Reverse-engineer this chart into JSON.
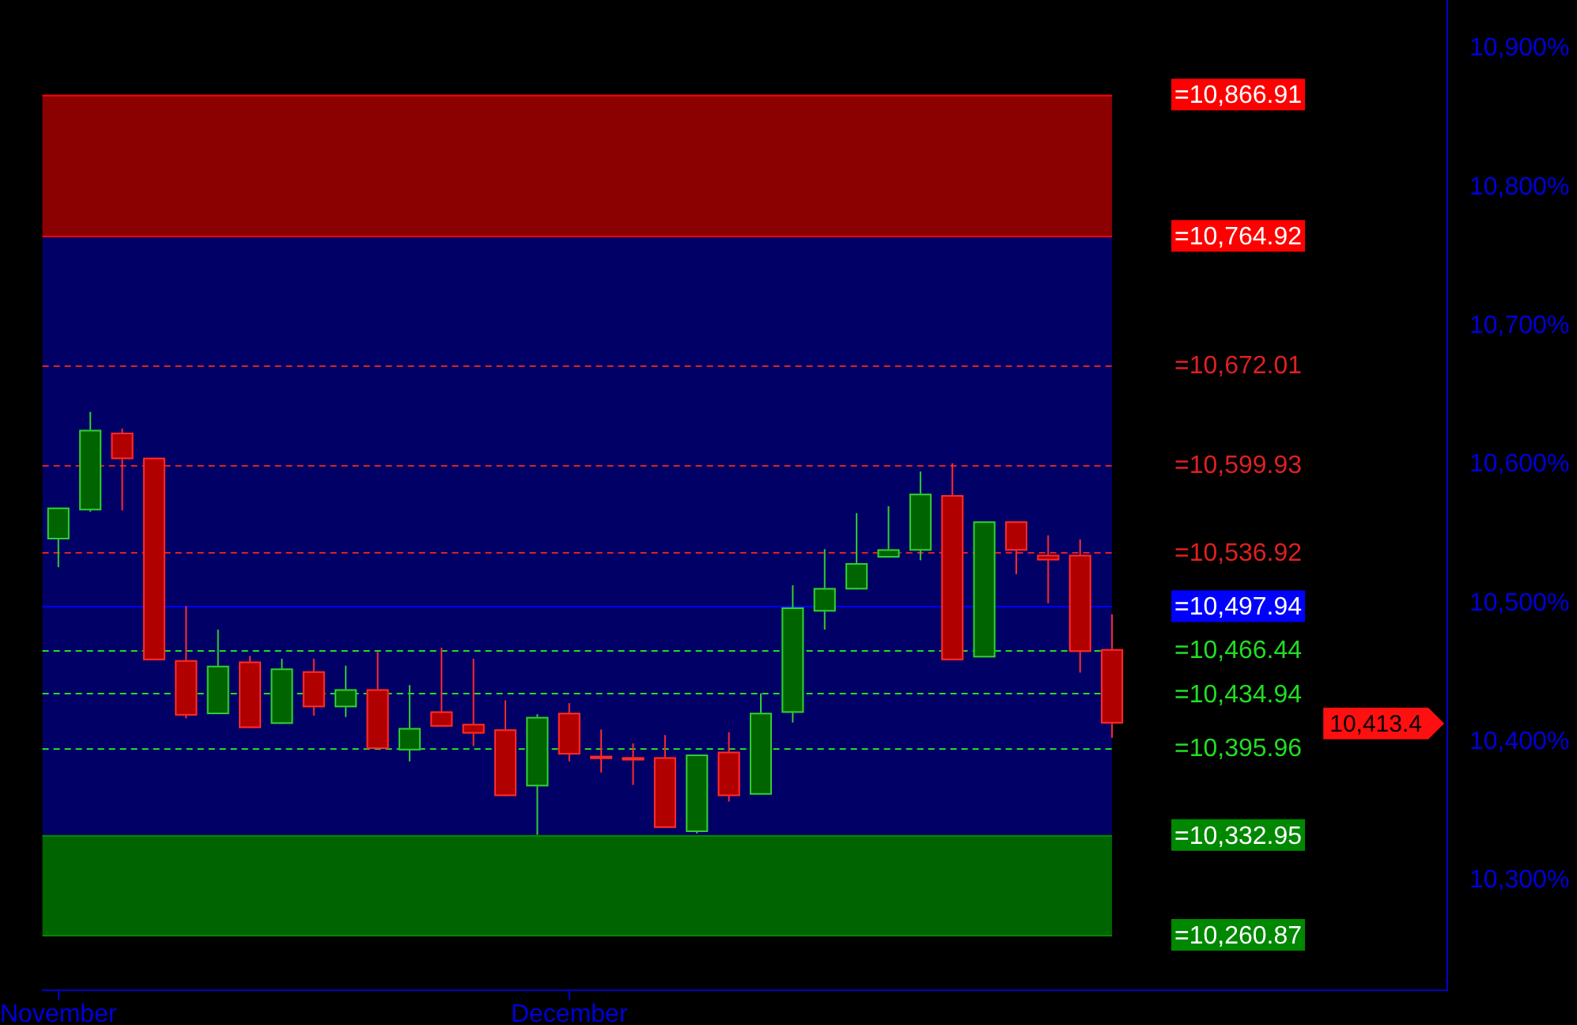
{
  "chart_data": {
    "type": "candlestick",
    "categories": [
      "November",
      null,
      null,
      null,
      null,
      null,
      null,
      null,
      null,
      null,
      null,
      null,
      null,
      null,
      null,
      null,
      "December",
      null,
      null,
      null,
      null,
      null,
      null,
      null,
      null,
      null,
      null,
      null,
      null,
      null,
      null,
      null,
      null,
      null,
      null,
      null,
      null,
      null,
      null,
      null,
      null,
      null,
      null,
      null
    ],
    "ohlc": [
      [
        10546,
        10569,
        10526,
        10569
      ],
      [
        10567,
        10638,
        10566,
        10625
      ],
      [
        10623,
        10626,
        10567,
        10604
      ],
      [
        10605,
        10605,
        10459,
        10459
      ],
      [
        10459,
        10498,
        10417,
        10419
      ],
      [
        10420,
        10481,
        10420,
        10455
      ],
      [
        10458,
        10462,
        10410,
        10410
      ],
      [
        10413,
        10460,
        10413,
        10453
      ],
      [
        10451,
        10460,
        10419,
        10425
      ],
      [
        10425,
        10455,
        10418,
        10438
      ],
      [
        10438,
        10465,
        10395,
        10395
      ],
      [
        10394,
        10441,
        10386,
        10410
      ],
      [
        10422,
        10468,
        10411,
        10411
      ],
      [
        10413,
        10460,
        10397,
        10406
      ],
      [
        10409,
        10430,
        10361,
        10361
      ],
      [
        10368,
        10420,
        10333,
        10418
      ],
      [
        10421,
        10428,
        10386,
        10391
      ],
      [
        10390,
        10409,
        10378,
        10389
      ],
      [
        10389,
        10399,
        10369,
        10388
      ],
      [
        10389,
        10405,
        10338,
        10338
      ],
      [
        10335,
        10391,
        10334,
        10391
      ],
      [
        10393,
        10407,
        10357,
        10361
      ],
      [
        10362,
        10435,
        10362,
        10421
      ],
      [
        10421,
        10513,
        10414,
        10497
      ],
      [
        10494,
        10539,
        10481,
        10511
      ],
      [
        10510,
        10565,
        10510,
        10529
      ],
      [
        10533,
        10570,
        10533,
        10539
      ],
      [
        10538,
        10595,
        10531,
        10579
      ],
      [
        10578,
        10601,
        10459,
        10459
      ],
      [
        10461,
        10559,
        10461,
        10559
      ],
      [
        10559,
        10559,
        10521,
        10538
      ],
      [
        10535,
        10549,
        10500,
        10531
      ],
      [
        10535,
        10546,
        10450,
        10465
      ],
      [
        10467,
        10492,
        10403,
        10413.4
      ],
      null,
      null,
      null,
      null,
      null,
      null,
      null,
      null,
      null,
      null
    ],
    "ylim": [
      10221,
      10935
    ],
    "yticks": [
      {
        "value": 10300,
        "label": "10,300%"
      },
      {
        "value": 10400,
        "label": "10,400%"
      },
      {
        "value": 10500,
        "label": "10,500%"
      },
      {
        "value": 10600,
        "label": "10,600%"
      },
      {
        "value": 10700,
        "label": "10,700%"
      },
      {
        "value": 10800,
        "label": "10,800%"
      },
      {
        "value": 10900,
        "label": "10,900%"
      }
    ],
    "bands": [
      {
        "axis": "y",
        "from": 10764.92,
        "to": 10866.91,
        "color": "#8b0000"
      },
      {
        "axis": "y",
        "from": 10332.95,
        "to": 10764.92,
        "color": "#000066"
      },
      {
        "axis": "y",
        "from": 10260.87,
        "to": 10332.95,
        "color": "#006400"
      }
    ],
    "ref_lines": [
      {
        "axis": "y",
        "value": 10866.91,
        "label": "=10,866.91",
        "color": "#ff0000",
        "line_style": "solid"
      },
      {
        "axis": "y",
        "value": 10764.92,
        "label": "=10,764.92",
        "color": "#ff0000",
        "line_style": "solid"
      },
      {
        "axis": "y",
        "value": 10672.01,
        "label": "=10,672.01",
        "color": "#e02020",
        "line_style": "dashed"
      },
      {
        "axis": "y",
        "value": 10599.93,
        "label": "=10,599.93",
        "color": "#e02020",
        "line_style": "dashed"
      },
      {
        "axis": "y",
        "value": 10536.92,
        "label": "=10,536.92",
        "color": "#e02020",
        "line_style": "dashed"
      },
      {
        "axis": "y",
        "value": 10497.94,
        "label": "=10,497.94",
        "color": "#0000ff",
        "line_style": "solid"
      },
      {
        "axis": "y",
        "value": 10466.44,
        "label": "=10,466.44",
        "color": "#22dd22",
        "line_style": "dashed"
      },
      {
        "axis": "y",
        "value": 10434.94,
        "label": "=10,434.94",
        "color": "#22dd22",
        "line_style": "dashed"
      },
      {
        "axis": "y",
        "value": 10395.96,
        "label": "=10,395.96",
        "color": "#22dd22",
        "line_style": "dashed"
      },
      {
        "axis": "y",
        "value": 10332.95,
        "label": "=10,332.95",
        "color": "#008800",
        "line_style": "solid"
      },
      {
        "axis": "y",
        "value": 10260.87,
        "label": "=10,260.87",
        "color": "#008800",
        "line_style": "solid"
      }
    ],
    "annotations": [
      "10,413.4"
    ]
  }
}
